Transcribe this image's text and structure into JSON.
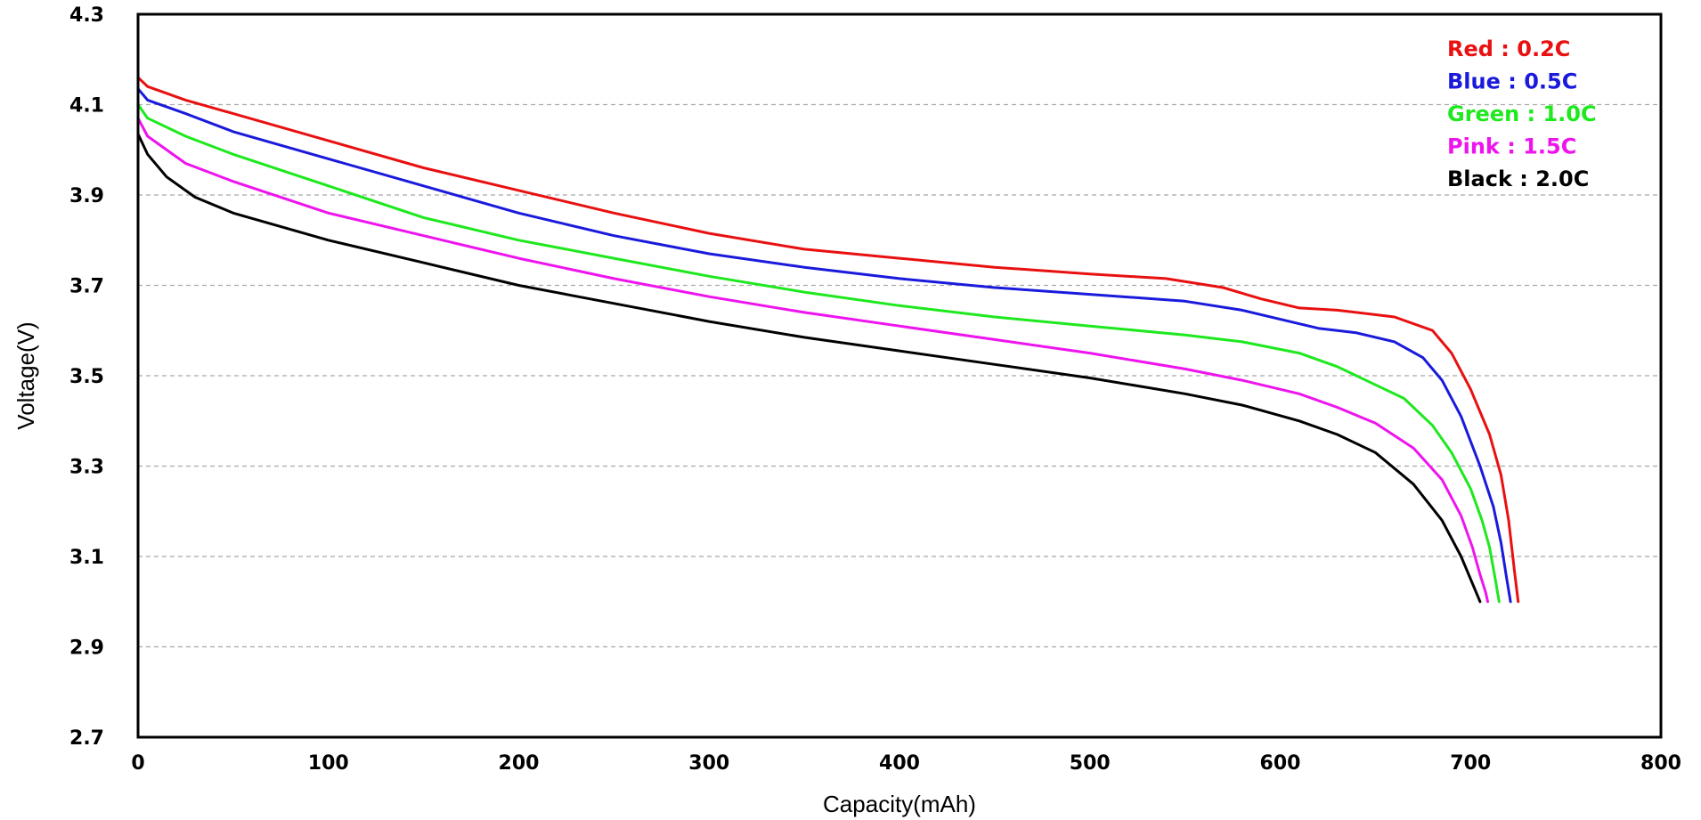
{
  "chart_data": {
    "type": "line",
    "xlabel": "Capacity(mAh)",
    "ylabel": "Voltage(V)",
    "xlim": [
      0,
      800
    ],
    "ylim": [
      2.7,
      4.3
    ],
    "xticks": [
      "0",
      "100",
      "200",
      "300",
      "400",
      "500",
      "600",
      "700",
      "800"
    ],
    "yticks": [
      "2.7",
      "2.9",
      "3.1",
      "3.3",
      "3.5",
      "3.7",
      "3.9",
      "4.1",
      "4.3"
    ],
    "grid": "horizontal dashed",
    "legend_position": "top-right",
    "series": [
      {
        "name": "Red : 0.2C",
        "color": "#e81010",
        "x": [
          0,
          5,
          25,
          50,
          100,
          150,
          200,
          250,
          300,
          350,
          400,
          450,
          500,
          540,
          570,
          590,
          610,
          630,
          660,
          680,
          690,
          700,
          710,
          716,
          720,
          723,
          725
        ],
        "y": [
          4.16,
          4.14,
          4.11,
          4.08,
          4.02,
          3.96,
          3.91,
          3.86,
          3.815,
          3.78,
          3.76,
          3.74,
          3.725,
          3.715,
          3.695,
          3.67,
          3.65,
          3.645,
          3.63,
          3.6,
          3.55,
          3.47,
          3.37,
          3.28,
          3.18,
          3.07,
          3.0
        ]
      },
      {
        "name": "Blue : 0.5C",
        "color": "#1a1adc",
        "x": [
          0,
          5,
          25,
          50,
          100,
          150,
          200,
          250,
          300,
          350,
          400,
          450,
          500,
          550,
          580,
          600,
          620,
          640,
          660,
          675,
          685,
          695,
          705,
          712,
          716,
          719,
          721
        ],
        "y": [
          4.135,
          4.11,
          4.08,
          4.04,
          3.98,
          3.92,
          3.86,
          3.81,
          3.77,
          3.74,
          3.715,
          3.695,
          3.68,
          3.665,
          3.645,
          3.625,
          3.605,
          3.595,
          3.575,
          3.54,
          3.49,
          3.41,
          3.3,
          3.21,
          3.13,
          3.05,
          3.0
        ]
      },
      {
        "name": "Green : 1.0C",
        "color": "#1ee81e",
        "x": [
          0,
          5,
          25,
          50,
          100,
          150,
          200,
          250,
          300,
          350,
          400,
          450,
          500,
          550,
          580,
          610,
          630,
          650,
          665,
          680,
          690,
          700,
          706,
          710,
          713,
          715
        ],
        "y": [
          4.1,
          4.07,
          4.03,
          3.99,
          3.92,
          3.85,
          3.8,
          3.76,
          3.72,
          3.685,
          3.655,
          3.63,
          3.61,
          3.59,
          3.575,
          3.55,
          3.52,
          3.48,
          3.45,
          3.39,
          3.33,
          3.25,
          3.18,
          3.12,
          3.05,
          3.0
        ]
      },
      {
        "name": "Pink : 1.5C",
        "color": "#ee14ee",
        "x": [
          0,
          5,
          25,
          50,
          100,
          150,
          200,
          250,
          300,
          350,
          400,
          450,
          500,
          550,
          580,
          610,
          630,
          650,
          670,
          685,
          695,
          701,
          705,
          708,
          709
        ],
        "y": [
          4.07,
          4.03,
          3.97,
          3.93,
          3.86,
          3.81,
          3.76,
          3.715,
          3.675,
          3.64,
          3.61,
          3.58,
          3.55,
          3.515,
          3.49,
          3.46,
          3.43,
          3.395,
          3.34,
          3.27,
          3.19,
          3.12,
          3.06,
          3.02,
          3.0
        ]
      },
      {
        "name": "Black : 2.0C",
        "color": "#000000",
        "x": [
          0,
          5,
          15,
          30,
          50,
          100,
          150,
          200,
          250,
          300,
          350,
          400,
          450,
          500,
          550,
          580,
          610,
          630,
          650,
          670,
          685,
          695,
          700,
          704,
          705
        ],
        "y": [
          4.035,
          3.99,
          3.94,
          3.895,
          3.86,
          3.8,
          3.75,
          3.7,
          3.66,
          3.62,
          3.585,
          3.555,
          3.525,
          3.495,
          3.46,
          3.435,
          3.4,
          3.37,
          3.33,
          3.26,
          3.18,
          3.1,
          3.05,
          3.01,
          3.0
        ]
      }
    ]
  }
}
